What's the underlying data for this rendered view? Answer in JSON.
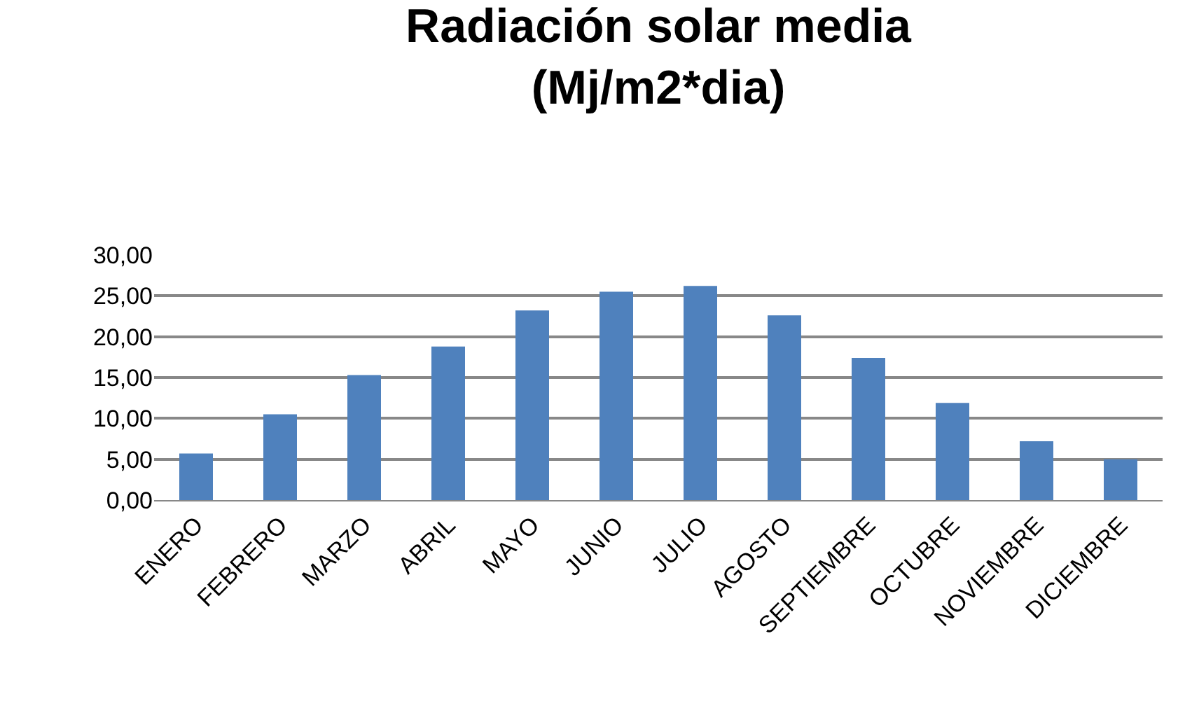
{
  "chart_data": {
    "type": "bar",
    "title": "Radiación solar media\n(Mj/m2*dia)",
    "categories": [
      "ENERO",
      "FEBRERO",
      "MARZO",
      "ABRIL",
      "MAYO",
      "JUNIO",
      "JULIO",
      "AGOSTO",
      "SEPTIEMBRE",
      "OCTUBRE",
      "NOVIEMBRE",
      "DICIEMBRE"
    ],
    "values": [
      5.7,
      10.5,
      15.3,
      18.8,
      23.2,
      25.5,
      26.2,
      22.6,
      17.4,
      11.9,
      7.2,
      5.0
    ],
    "color": "#4f81bd",
    "ylim": [
      0,
      30
    ],
    "yticks": [
      {
        "value": 0,
        "label": "0,00"
      },
      {
        "value": 5,
        "label": "5,00"
      },
      {
        "value": 10,
        "label": "10,00"
      },
      {
        "value": 15,
        "label": "15,00"
      },
      {
        "value": 20,
        "label": "20,00"
      },
      {
        "value": 25,
        "label": "25,00"
      },
      {
        "value": 30,
        "label": "30,00"
      }
    ],
    "grid": "y",
    "legend": false
  }
}
